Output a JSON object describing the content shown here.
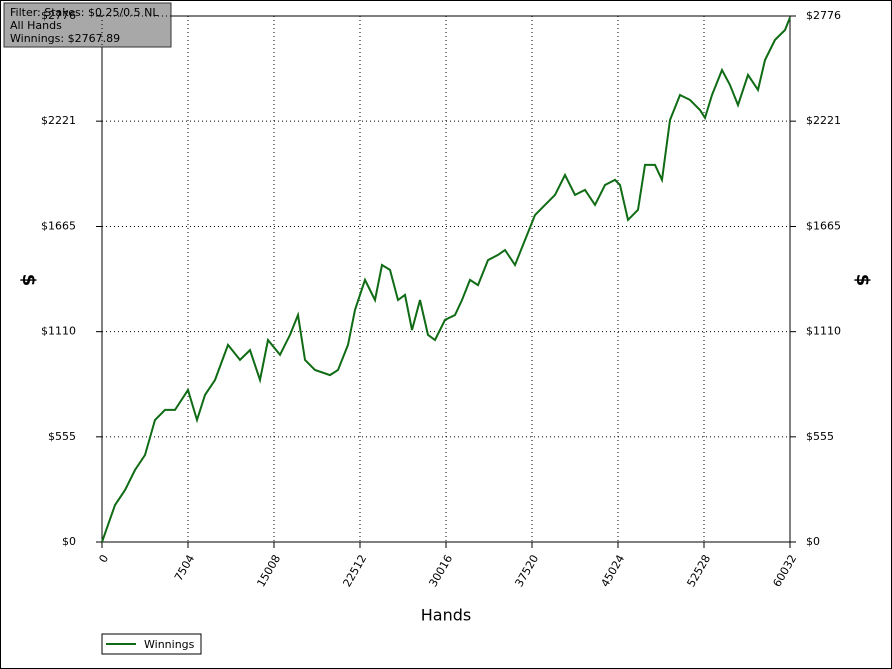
{
  "chart_data": {
    "type": "line",
    "info": [
      "Filter: Stakes: $0.25/0.5 NL",
      "All Hands",
      "Winnings: $2767.89"
    ],
    "x_label": "Hands",
    "y_label": "$",
    "y2_label": "$",
    "xlim": [
      0,
      60032
    ],
    "xticks": [
      0,
      7504,
      15008,
      22512,
      30016,
      37520,
      45024,
      52528,
      60032
    ],
    "ylim": [
      0,
      2776
    ],
    "yticks": [
      {
        "value": 0,
        "label": "$0"
      },
      {
        "value": 555,
        "label": "$555"
      },
      {
        "value": 1110,
        "label": "$1110"
      },
      {
        "value": 1665,
        "label": "$1665"
      },
      {
        "value": 2221,
        "label": "$2221"
      },
      {
        "value": 2776,
        "label": "$2776"
      }
    ],
    "grid": true,
    "legend": "bottom-left",
    "x": [
      0,
      524,
      1134,
      2007,
      2880,
      3752,
      4625,
      5497,
      6370,
      7504,
      8290,
      8988,
      9860,
      10995,
      12042,
      12915,
      13787,
      14485,
      15532,
      16405,
      17103,
      17714,
      18586,
      19895,
      20593,
      21466,
      22076,
      22949,
      23822,
      24432,
      25130,
      25828,
      26439,
      27050,
      27748,
      28446,
      29057,
      29929,
      30802,
      31413,
      32111,
      32809,
      33682,
      34554,
      35165,
      36038,
      36910,
      37783,
      38655,
      39528,
      40400,
      41273,
      42145,
      43018,
      43891,
      44763,
      45199,
      45897,
      46770,
      47381,
      48253,
      48864,
      49562,
      50434,
      51307,
      52180,
      52616,
      53227,
      54100,
      54798,
      55496,
      56369,
      57242,
      57853,
      58725,
      59598,
      60032
    ],
    "series": [
      {
        "name": "Winnings",
        "color": "#0f6b14",
        "values": [
          0,
          90,
          195,
          274,
          380,
          459,
          644,
          697,
          697,
          802,
          644,
          776,
          855,
          1040,
          961,
          1013,
          855,
          1066,
          988,
          1093,
          1198,
          961,
          908,
          881,
          908,
          1040,
          1225,
          1383,
          1277,
          1462,
          1436,
          1277,
          1304,
          1119,
          1277,
          1093,
          1066,
          1172,
          1198,
          1277,
          1383,
          1356,
          1488,
          1515,
          1541,
          1462,
          1594,
          1726,
          1779,
          1832,
          1937,
          1832,
          1858,
          1779,
          1884,
          1911,
          1884,
          1700,
          1753,
          1990,
          1990,
          1911,
          2227,
          2359,
          2333,
          2280,
          2238,
          2359,
          2491,
          2412,
          2306,
          2465,
          2386,
          2544,
          2650,
          2702,
          2768
        ]
      }
    ]
  }
}
